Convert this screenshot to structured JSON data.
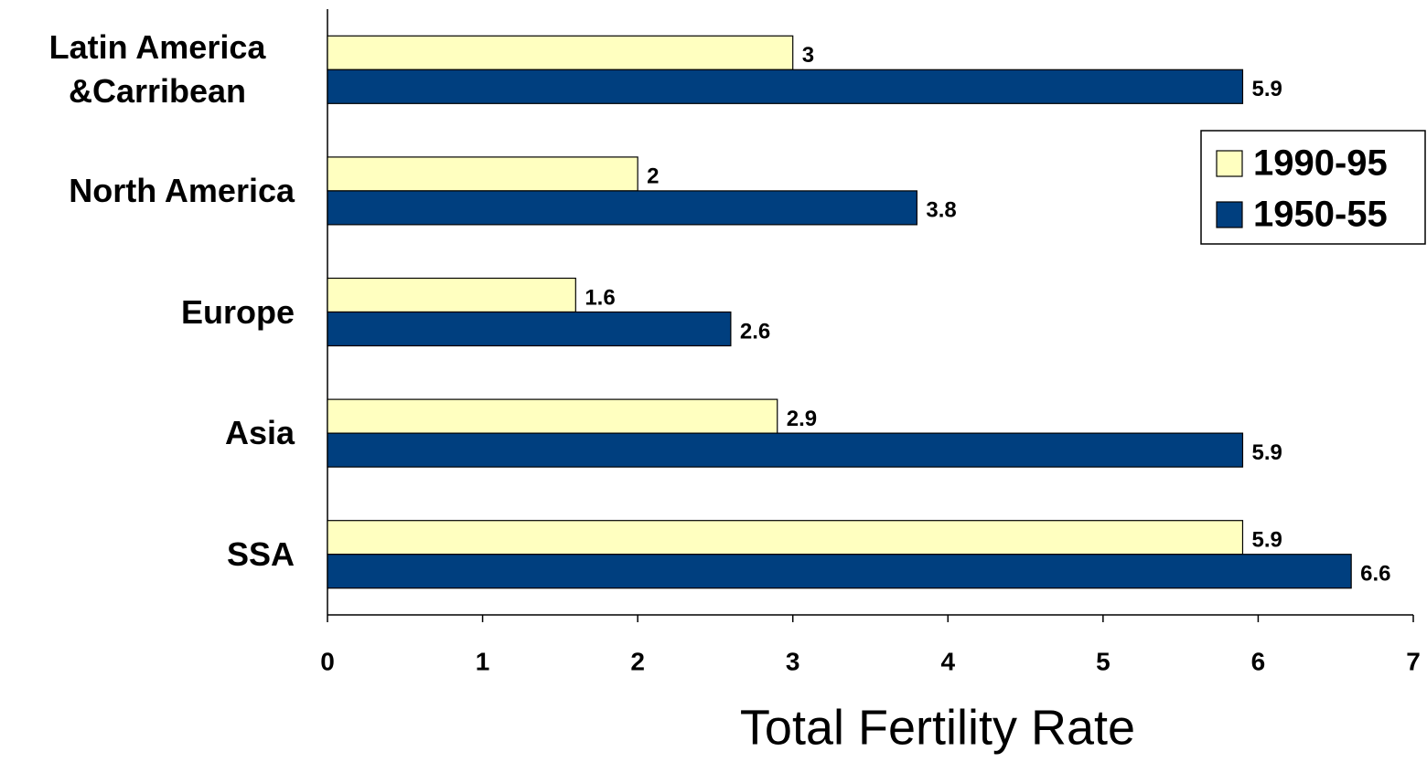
{
  "chart_data": {
    "type": "barh",
    "categories": [
      "Latin America &Carribean",
      "North America",
      "Europe",
      "Asia",
      "SSA"
    ],
    "series": [
      {
        "name": "1990-95",
        "color": "#ffffc0",
        "values": [
          3,
          2,
          1.6,
          2.9,
          5.9
        ]
      },
      {
        "name": "1950-55",
        "color": "#003f7f",
        "values": [
          5.9,
          3.8,
          2.6,
          5.9,
          6.6
        ]
      }
    ],
    "xlim": [
      0,
      7
    ],
    "xticks": [
      0,
      1,
      2,
      3,
      4,
      5,
      6,
      7
    ],
    "xlabel": "Total Fertility Rate",
    "legend": "upper right"
  }
}
